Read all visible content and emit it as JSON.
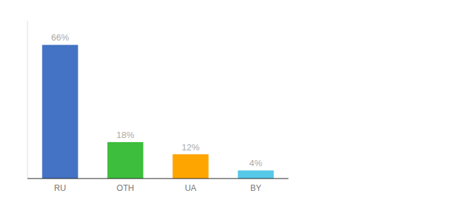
{
  "chart_data": {
    "type": "bar",
    "categories": [
      "RU",
      "OTH",
      "UA",
      "BY"
    ],
    "values": [
      66,
      18,
      12,
      4
    ],
    "value_labels": [
      "66%",
      "18%",
      "12%",
      "4%"
    ],
    "colors": [
      "#4472C4",
      "#3DBE3D",
      "#FFA500",
      "#56C8E8"
    ],
    "ylim": [
      0,
      78
    ],
    "data_labels": true,
    "tick_labels": "x",
    "grid": false
  }
}
